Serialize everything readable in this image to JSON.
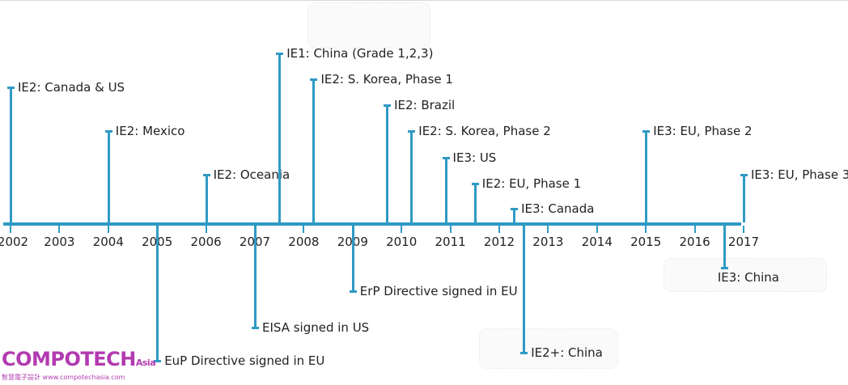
{
  "timeline": {
    "years": [
      "2002",
      "2003",
      "2004",
      "2005",
      "2006",
      "2007",
      "2008",
      "2009",
      "2010",
      "2011",
      "2012",
      "2013",
      "2014",
      "2015",
      "2016",
      "2017"
    ],
    "events_above": [
      {
        "label": "IE2: Canada & US",
        "year": 2002.0
      },
      {
        "label": "IE2: Mexico",
        "year": 2004.0
      },
      {
        "label": "IE2: Oceania",
        "year": 2006.0
      },
      {
        "label": "IE1: China (Grade 1,2,3)",
        "year": 2007.5
      },
      {
        "label": "IE2: S. Korea, Phase 1",
        "year": 2008.2
      },
      {
        "label": "IE2: Brazil",
        "year": 2009.7
      },
      {
        "label": "IE2: S. Korea, Phase 2",
        "year": 2010.2
      },
      {
        "label": "IE3: US",
        "year": 2010.9
      },
      {
        "label": "IE2: EU, Phase 1",
        "year": 2011.5
      },
      {
        "label": "IE3: Canada",
        "year": 2012.3
      },
      {
        "label": "IE3: EU, Phase 2",
        "year": 2015.0
      },
      {
        "label": "IE3: EU, Phase 3",
        "year": 2017.0
      }
    ],
    "events_below": [
      {
        "label": "EuP Directive signed in EU",
        "year": 2005.0
      },
      {
        "label": "EISA signed in US",
        "year": 2007.0
      },
      {
        "label": "ErP Directive signed in EU",
        "year": 2009.0
      },
      {
        "label": "IE2+: China",
        "year": 2012.5
      },
      {
        "label": "IE3: China",
        "year": 2016.6
      }
    ]
  },
  "watermark": {
    "brand": "COMPOTECH",
    "brand_suffix": "Asia",
    "tagline": "智慧電子設計 www.compotechasia.com"
  },
  "colors": {
    "accent": "#2f9ac4",
    "brand": "#b23bb0"
  }
}
